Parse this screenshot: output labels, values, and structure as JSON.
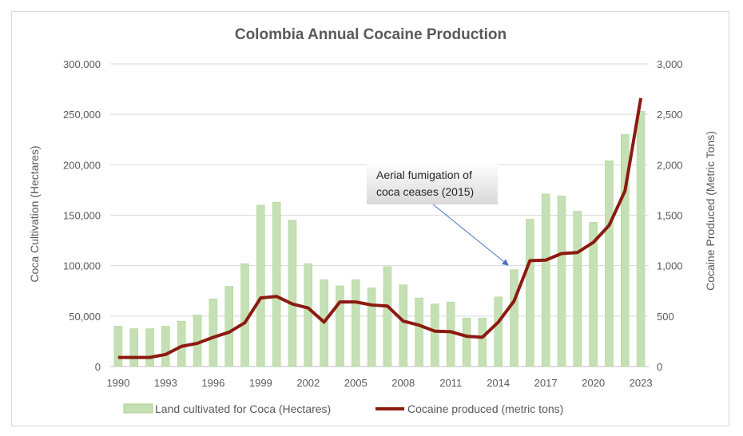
{
  "chart_data": {
    "type": "bar+line",
    "title": "Colombia Annual Cocaine Production",
    "ylabel": "Coca Cultivation (Hectares)",
    "y2label": "Cocaine Produced (Metric Tons)",
    "ylim": [
      0,
      300000
    ],
    "y2lim": [
      0,
      3000
    ],
    "yticks": [
      "0",
      "50,000",
      "100,000",
      "150,000",
      "200,000",
      "250,000",
      "300,000"
    ],
    "y2ticks": [
      "0",
      "500",
      "1,000",
      "1,500",
      "2,000",
      "2,500",
      "3,000"
    ],
    "xticks": [
      "1990",
      "1993",
      "1996",
      "1999",
      "2002",
      "2005",
      "2008",
      "2011",
      "2014",
      "2017",
      "2020",
      "2023"
    ],
    "grid": true,
    "legend": "bottom",
    "x": [
      1990,
      1991,
      1992,
      1993,
      1994,
      1995,
      1996,
      1997,
      1998,
      1999,
      2000,
      2001,
      2002,
      2003,
      2004,
      2005,
      2006,
      2007,
      2008,
      2009,
      2010,
      2011,
      2012,
      2013,
      2014,
      2015,
      2016,
      2017,
      2018,
      2019,
      2020,
      2021,
      2022,
      2023
    ],
    "series": [
      {
        "name": "Land cultivated for Coca (Hectares)",
        "type": "bar",
        "axis": "left",
        "color": "#c5e0b4",
        "values": [
          40000,
          37500,
          37500,
          40000,
          45000,
          51000,
          67000,
          79500,
          102000,
          160000,
          163000,
          145000,
          102000,
          86000,
          80000,
          86000,
          78000,
          99000,
          81000,
          68000,
          62000,
          64000,
          48000,
          48000,
          69000,
          96000,
          146000,
          171000,
          169000,
          154000,
          143000,
          204000,
          230000,
          253000
        ]
      },
      {
        "name": "Cocaine produced (metric tons)",
        "type": "line",
        "axis": "right",
        "color": "#8b1a10",
        "values": [
          90,
          90,
          90,
          120,
          200,
          230,
          290,
          340,
          435,
          680,
          695,
          620,
          580,
          440,
          640,
          640,
          610,
          600,
          450,
          410,
          350,
          345,
          300,
          290,
          440,
          650,
          1050,
          1055,
          1120,
          1130,
          1230,
          1400,
          1740,
          2660
        ]
      }
    ],
    "annotation": {
      "line1": "Aerial fumigation of",
      "line2": "coca ceases (2015)",
      "points_to": 2015
    }
  }
}
